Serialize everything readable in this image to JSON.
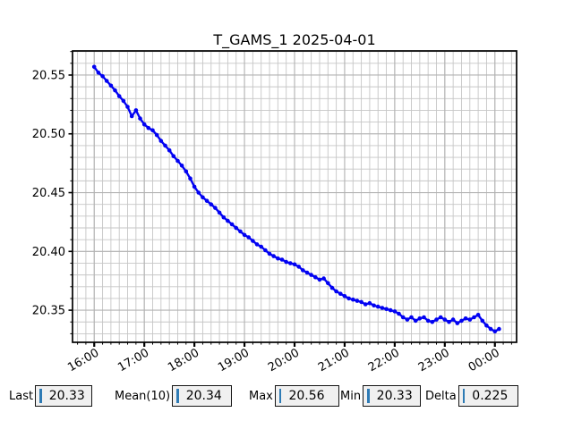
{
  "chart_data": {
    "type": "line",
    "title": "T_GAMS_1 2025-04-01",
    "xlabel": "",
    "ylabel": "",
    "x_tick_labels": [
      "16:00",
      "17:00",
      "18:00",
      "19:00",
      "20:00",
      "21:00",
      "22:00",
      "23:00",
      "00:00"
    ],
    "x_tick_minutes": [
      0,
      60,
      120,
      180,
      240,
      300,
      360,
      420,
      480
    ],
    "x_minor_step_minutes": 10,
    "xlim_minutes": [
      -26,
      506
    ],
    "y_ticks": [
      20.35,
      20.4,
      20.45,
      20.5,
      20.55
    ],
    "y_tick_labels": [
      "20.35",
      "20.40",
      "20.45",
      "20.50",
      "20.55"
    ],
    "y_minor_step": 0.01,
    "ylim": [
      20.3227,
      20.5705
    ],
    "grid": "both",
    "legend": "none",
    "marker": "circle",
    "series": [
      {
        "name": "T_GAMS_1",
        "start_time": "16:00",
        "step_minutes": 5,
        "minutes": [
          0,
          5,
          10,
          15,
          20,
          25,
          30,
          35,
          40,
          45,
          50,
          55,
          60,
          65,
          70,
          75,
          80,
          85,
          90,
          95,
          100,
          105,
          110,
          115,
          120,
          125,
          130,
          135,
          140,
          145,
          150,
          155,
          160,
          165,
          170,
          175,
          180,
          185,
          190,
          195,
          200,
          205,
          210,
          215,
          220,
          225,
          230,
          235,
          240,
          245,
          250,
          255,
          260,
          265,
          270,
          275,
          280,
          285,
          290,
          295,
          300,
          305,
          310,
          315,
          320,
          325,
          330,
          335,
          340,
          345,
          350,
          355,
          360,
          365,
          370,
          375,
          380,
          385,
          390,
          395,
          400,
          405,
          410,
          415,
          420,
          425,
          430,
          435,
          440,
          445,
          450,
          455,
          460,
          465,
          470,
          475,
          480,
          485
        ],
        "values": [
          20.557,
          20.552,
          20.549,
          20.545,
          20.541,
          20.537,
          20.532,
          20.528,
          20.523,
          20.515,
          20.52,
          20.513,
          20.508,
          20.505,
          20.503,
          20.499,
          20.494,
          20.49,
          20.486,
          20.481,
          20.477,
          20.473,
          20.468,
          20.462,
          20.455,
          20.45,
          20.446,
          20.443,
          20.44,
          20.437,
          20.433,
          20.429,
          20.426,
          20.423,
          20.42,
          20.417,
          20.414,
          20.412,
          20.409,
          20.406,
          20.404,
          20.401,
          20.398,
          20.396,
          20.394,
          20.393,
          20.391,
          20.39,
          20.389,
          20.387,
          20.384,
          20.382,
          20.38,
          20.378,
          20.376,
          20.377,
          20.373,
          20.369,
          20.366,
          20.364,
          20.362,
          20.36,
          20.359,
          20.358,
          20.357,
          20.355,
          20.356,
          20.354,
          20.353,
          20.352,
          20.351,
          20.35,
          20.349,
          20.347,
          20.344,
          20.342,
          20.344,
          20.341,
          20.343,
          20.344,
          20.341,
          20.34,
          20.342,
          20.344,
          20.342,
          20.34,
          20.342,
          20.339,
          20.341,
          20.343,
          20.342,
          20.344,
          20.346,
          20.341,
          20.337,
          20.334,
          20.332,
          20.334
        ]
      }
    ]
  },
  "stats": [
    {
      "label": "Last",
      "value": "20.33"
    },
    {
      "label": "Mean(10)",
      "value": "20.34"
    },
    {
      "label": "Max",
      "value": "20.56"
    },
    {
      "label": "Min",
      "value": "20.33"
    },
    {
      "label": "Delta",
      "value": "0.225"
    }
  ],
  "colors": {
    "line": "#0202f2",
    "grid_major": "#b2b2b2",
    "grid_minor": "#c6c6c6",
    "spine": "#000000",
    "box_bg": "#f0f0f0",
    "box_border": "#151515",
    "caret": "#2e7bb5",
    "text": "#000000"
  }
}
